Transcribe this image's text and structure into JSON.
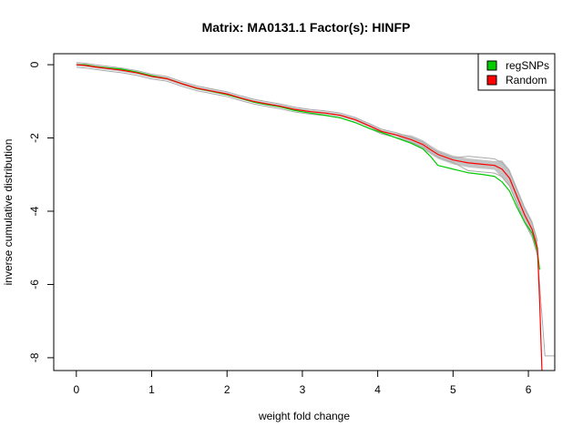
{
  "chart_data": {
    "type": "line",
    "title": "Matrix: MA0131.1 Factor(s): HINFP",
    "xlabel": "weight fold change",
    "ylabel": "inverse cumulative distribution",
    "xlim": [
      -0.3,
      6.35
    ],
    "ylim": [
      -8.35,
      0.3
    ],
    "x_ticks": [
      0,
      1,
      2,
      3,
      4,
      5,
      6
    ],
    "y_ticks": [
      0,
      -2,
      -4,
      -6,
      -8
    ],
    "legend_position": "top-right",
    "series": [
      {
        "name": "regSNPs",
        "color": "#00cc00",
        "x": [
          0,
          0.12,
          0.25,
          0.4,
          0.6,
          0.8,
          1.0,
          1.2,
          1.4,
          1.6,
          1.8,
          2.0,
          2.2,
          2.35,
          2.5,
          2.7,
          2.9,
          3.1,
          3.3,
          3.5,
          3.7,
          3.9,
          4.05,
          4.25,
          4.45,
          4.6,
          4.7,
          4.8,
          5.0,
          5.2,
          5.4,
          5.55,
          5.65,
          5.75,
          5.85,
          5.95,
          6.05,
          6.12,
          6.15
        ],
        "values": [
          0,
          0,
          -0.05,
          -0.08,
          -0.12,
          -0.2,
          -0.3,
          -0.38,
          -0.52,
          -0.65,
          -0.73,
          -0.82,
          -0.93,
          -1.02,
          -1.08,
          -1.15,
          -1.25,
          -1.32,
          -1.38,
          -1.45,
          -1.58,
          -1.75,
          -1.85,
          -2.0,
          -2.15,
          -2.3,
          -2.5,
          -2.75,
          -2.85,
          -2.95,
          -3.0,
          -3.05,
          -3.2,
          -3.45,
          -3.9,
          -4.3,
          -4.6,
          -5.1,
          -5.6
        ]
      },
      {
        "name": "Random",
        "color": "#ff0000",
        "x": [
          0,
          0.12,
          0.25,
          0.4,
          0.6,
          0.8,
          1.0,
          1.2,
          1.4,
          1.6,
          1.8,
          2.0,
          2.2,
          2.35,
          2.5,
          2.7,
          2.9,
          3.1,
          3.3,
          3.5,
          3.7,
          3.9,
          4.05,
          4.25,
          4.45,
          4.6,
          4.7,
          4.8,
          5.0,
          5.2,
          5.4,
          5.55,
          5.65,
          5.75,
          5.85,
          5.95,
          6.05,
          6.12,
          6.15,
          6.18
        ],
        "values": [
          0,
          -0.02,
          -0.06,
          -0.1,
          -0.15,
          -0.22,
          -0.32,
          -0.38,
          -0.52,
          -0.64,
          -0.72,
          -0.8,
          -0.92,
          -1.0,
          -1.06,
          -1.13,
          -1.22,
          -1.28,
          -1.32,
          -1.38,
          -1.5,
          -1.68,
          -1.82,
          -1.92,
          -2.05,
          -2.18,
          -2.32,
          -2.45,
          -2.6,
          -2.68,
          -2.72,
          -2.75,
          -2.85,
          -3.1,
          -3.6,
          -4.1,
          -4.5,
          -5.0,
          -6.5,
          -8.35
        ]
      }
    ]
  }
}
